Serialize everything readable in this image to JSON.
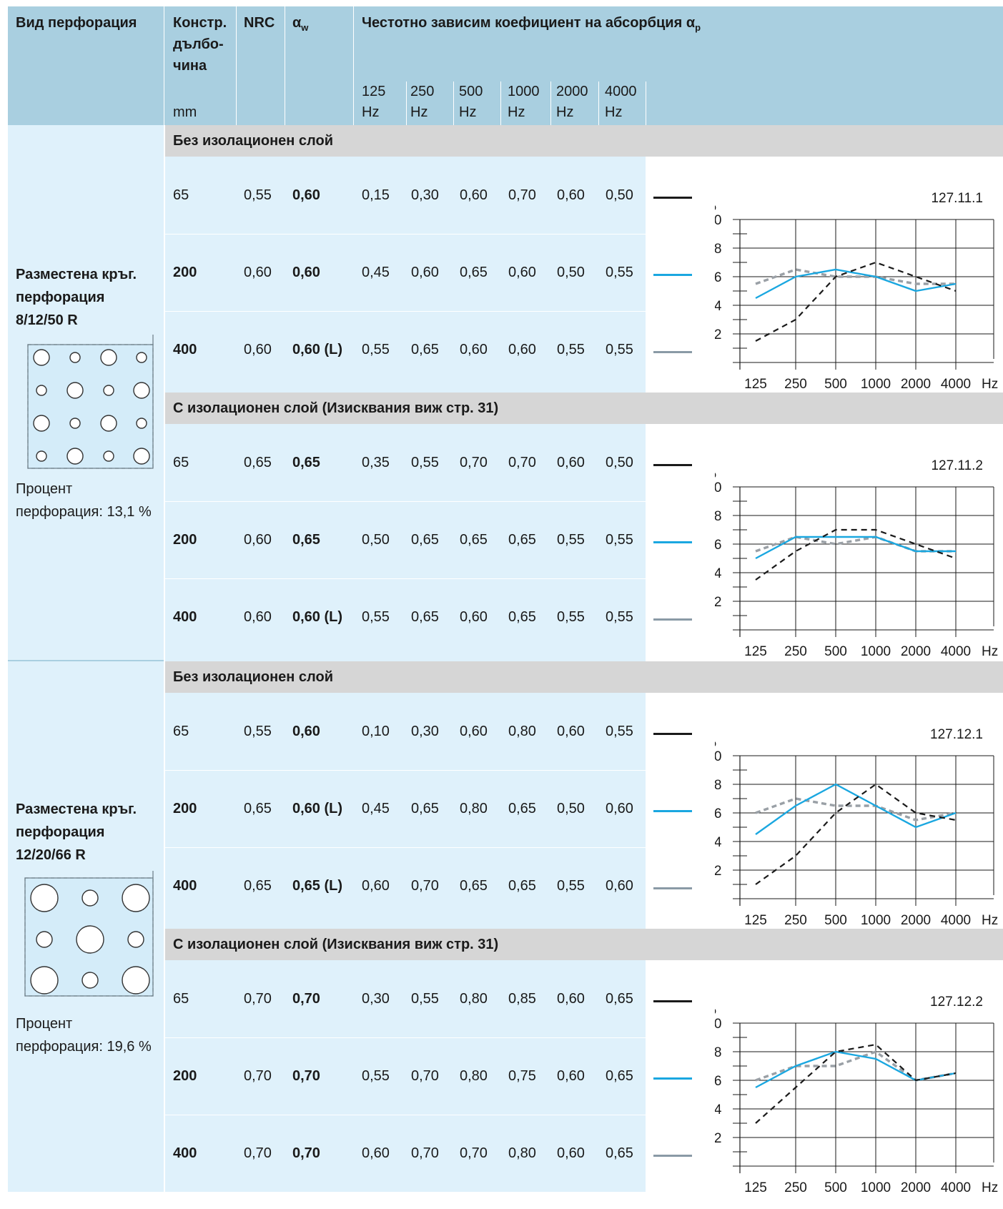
{
  "header": {
    "col_type": "Вид перфорация",
    "col_depth": [
      "Констр.",
      "дълбо-",
      "чина"
    ],
    "col_depth_unit": "mm",
    "col_nrc": "NRC",
    "col_aw_main": "α",
    "col_aw_sub": "w",
    "col_freq_main": "Честотно зависим коефициент на абсорбция α",
    "col_freq_sub": "p",
    "freq_values": [
      "125",
      "250",
      "500",
      "1000",
      "2000",
      "4000"
    ],
    "freq_unit": "Hz"
  },
  "band_labels": {
    "without": "Без изолационен слой",
    "with": "С изолационен слой (Изисквания виж стр. 31)"
  },
  "legend_colors": {
    "depth_65": "#1a1a1a",
    "depth_200": "#1aa7e0",
    "depth_400": "#8a9aa6"
  },
  "perforations": [
    {
      "name": [
        "Разместена кръг.",
        "перфорация",
        "8/12/50 R"
      ],
      "percent_label": [
        "Процент",
        "перфорация: 13,1 %"
      ],
      "groups": [
        {
          "band": "Без изолационен слой",
          "rows": [
            {
              "depth": "65",
              "nrc": "0,55",
              "aw": "0,60",
              "values": [
                "0,15",
                "0,30",
                "0,60",
                "0,70",
                "0,60",
                "0,50"
              ]
            },
            {
              "depth": "200",
              "nrc": "0,60",
              "aw": "0,60",
              "values": [
                "0,45",
                "0,60",
                "0,65",
                "0,60",
                "0,50",
                "0,55"
              ]
            },
            {
              "depth": "400",
              "nrc": "0,60",
              "aw": "0,60 (L)",
              "values": [
                "0,55",
                "0,65",
                "0,60",
                "0,60",
                "0,55",
                "0,55"
              ]
            }
          ]
        },
        {
          "band": "С изолационен слой (Изисквания виж стр. 31)",
          "rows": [
            {
              "depth": "65",
              "nrc": "0,65",
              "aw": "0,65",
              "values": [
                "0,35",
                "0,55",
                "0,70",
                "0,70",
                "0,60",
                "0,50"
              ]
            },
            {
              "depth": "200",
              "nrc": "0,60",
              "aw": "0,65",
              "values": [
                "0,50",
                "0,65",
                "0,65",
                "0,65",
                "0,55",
                "0,55"
              ]
            },
            {
              "depth": "400",
              "nrc": "0,60",
              "aw": "0,60 (L)",
              "values": [
                "0,55",
                "0,65",
                "0,60",
                "0,65",
                "0,55",
                "0,55"
              ]
            }
          ]
        }
      ]
    },
    {
      "name": [
        "Разместена кръг.",
        "перфорация",
        "12/20/66 R"
      ],
      "percent_label": [
        "Процент",
        "перфорация: 19,6 %"
      ],
      "groups": [
        {
          "band": "Без изолационен слой",
          "rows": [
            {
              "depth": "65",
              "nrc": "0,55",
              "aw": "0,60",
              "values": [
                "0,10",
                "0,30",
                "0,60",
                "0,80",
                "0,60",
                "0,55"
              ]
            },
            {
              "depth": "200",
              "nrc": "0,65",
              "aw": "0,60 (L)",
              "values": [
                "0,45",
                "0,65",
                "0,80",
                "0,65",
                "0,50",
                "0,60"
              ]
            },
            {
              "depth": "400",
              "nrc": "0,65",
              "aw": "0,65 (L)",
              "values": [
                "0,60",
                "0,70",
                "0,65",
                "0,65",
                "0,55",
                "0,60"
              ]
            }
          ]
        },
        {
          "band": "С изолационен слой (Изисквания виж стр. 31)",
          "rows": [
            {
              "depth": "65",
              "nrc": "0,70",
              "aw": "0,70",
              "values": [
                "0,30",
                "0,55",
                "0,80",
                "0,85",
                "0,60",
                "0,65"
              ]
            },
            {
              "depth": "200",
              "nrc": "0,70",
              "aw": "0,70",
              "values": [
                "0,55",
                "0,70",
                "0,80",
                "0,75",
                "0,60",
                "0,65"
              ]
            },
            {
              "depth": "400",
              "nrc": "0,70",
              "aw": "0,70",
              "values": [
                "0,60",
                "0,70",
                "0,70",
                "0,80",
                "0,60",
                "0,65"
              ]
            }
          ]
        }
      ]
    }
  ],
  "chart_data": [
    {
      "type": "line",
      "id": "127.11.1",
      "ylabel": "α",
      "ylabel_sub": "p",
      "x": [
        "125",
        "250",
        "500",
        "1000",
        "2000",
        "4000"
      ],
      "x_unit": "Hz",
      "yticks": [
        "0",
        "0,2",
        "0,4",
        "0,6",
        "0,8",
        "1,0"
      ],
      "ylim": [
        0,
        1.0
      ],
      "series": [
        {
          "style": "dashed-black",
          "values": [
            0.15,
            0.3,
            0.6,
            0.7,
            0.6,
            0.5
          ]
        },
        {
          "style": "solid-blue",
          "values": [
            0.45,
            0.6,
            0.65,
            0.6,
            0.5,
            0.55
          ]
        },
        {
          "style": "dashed-grey",
          "values": [
            0.55,
            0.65,
            0.6,
            0.6,
            0.55,
            0.55
          ]
        }
      ]
    },
    {
      "type": "line",
      "id": "127.11.2",
      "ylabel": "α",
      "ylabel_sub": "p",
      "x": [
        "125",
        "250",
        "500",
        "1000",
        "2000",
        "4000"
      ],
      "x_unit": "Hz",
      "yticks": [
        "0",
        "0,2",
        "0,4",
        "0,6",
        "0,8",
        "1,0"
      ],
      "ylim": [
        0,
        1.0
      ],
      "series": [
        {
          "style": "dashed-black",
          "values": [
            0.35,
            0.55,
            0.7,
            0.7,
            0.6,
            0.5
          ]
        },
        {
          "style": "solid-blue",
          "values": [
            0.5,
            0.65,
            0.65,
            0.65,
            0.55,
            0.55
          ]
        },
        {
          "style": "dashed-grey",
          "values": [
            0.55,
            0.65,
            0.6,
            0.65,
            0.55,
            0.55
          ]
        }
      ]
    },
    {
      "type": "line",
      "id": "127.12.1",
      "ylabel": "α",
      "ylabel_sub": "p",
      "x": [
        "125",
        "250",
        "500",
        "1000",
        "2000",
        "4000"
      ],
      "x_unit": "Hz",
      "yticks": [
        "0",
        "0,2",
        "0,4",
        "0,6",
        "0,8",
        "1,0"
      ],
      "ylim": [
        0,
        1.0
      ],
      "series": [
        {
          "style": "dashed-black",
          "values": [
            0.1,
            0.3,
            0.6,
            0.8,
            0.6,
            0.55
          ]
        },
        {
          "style": "solid-blue",
          "values": [
            0.45,
            0.65,
            0.8,
            0.65,
            0.5,
            0.6
          ]
        },
        {
          "style": "dashed-grey",
          "values": [
            0.6,
            0.7,
            0.65,
            0.65,
            0.55,
            0.6
          ]
        }
      ]
    },
    {
      "type": "line",
      "id": "127.12.2",
      "ylabel": "α",
      "ylabel_sub": "p",
      "x": [
        "125",
        "250",
        "500",
        "1000",
        "2000",
        "4000"
      ],
      "x_unit": "Hz",
      "yticks": [
        "0",
        "0,2",
        "0,4",
        "0,6",
        "0,8",
        "1,0"
      ],
      "ylim": [
        0,
        1.0
      ],
      "series": [
        {
          "style": "dashed-black",
          "values": [
            0.3,
            0.55,
            0.8,
            0.85,
            0.6,
            0.65
          ]
        },
        {
          "style": "solid-blue",
          "values": [
            0.55,
            0.7,
            0.8,
            0.75,
            0.6,
            0.65
          ]
        },
        {
          "style": "dashed-grey",
          "values": [
            0.6,
            0.7,
            0.7,
            0.8,
            0.6,
            0.65
          ]
        }
      ]
    }
  ]
}
